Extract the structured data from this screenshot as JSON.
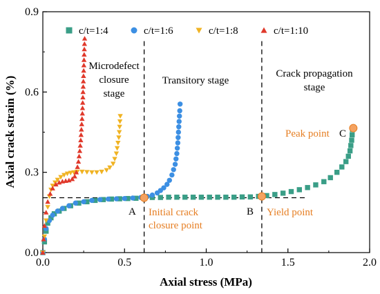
{
  "chart_data": {
    "type": "scatter",
    "xlabel": "Axial stress (MPa)",
    "ylabel": "Axial crack strain (%)",
    "xlim": [
      0,
      2.0
    ],
    "ylim": [
      0,
      0.9
    ],
    "xticks": [
      "0.0",
      "0.5",
      "1.0",
      "1.5",
      "2.0"
    ],
    "yticks": [
      "0.0",
      "0.3",
      "0.6",
      "0.9"
    ],
    "grid": false,
    "legend_position": "top",
    "series": [
      {
        "name": "c/t=1:4",
        "marker": "square",
        "color": "#3A9E87",
        "points": [
          [
            0.0,
            0.0
          ],
          [
            0.01,
            0.04
          ],
          [
            0.02,
            0.08
          ],
          [
            0.03,
            0.11
          ],
          [
            0.05,
            0.13
          ],
          [
            0.07,
            0.145
          ],
          [
            0.1,
            0.155
          ],
          [
            0.13,
            0.165
          ],
          [
            0.17,
            0.175
          ],
          [
            0.22,
            0.185
          ],
          [
            0.27,
            0.19
          ],
          [
            0.32,
            0.195
          ],
          [
            0.37,
            0.198
          ],
          [
            0.42,
            0.2
          ],
          [
            0.47,
            0.201
          ],
          [
            0.52,
            0.202
          ],
          [
            0.57,
            0.203
          ],
          [
            0.62,
            0.205
          ],
          [
            0.67,
            0.206
          ],
          [
            0.72,
            0.206
          ],
          [
            0.77,
            0.207
          ],
          [
            0.82,
            0.207
          ],
          [
            0.87,
            0.207
          ],
          [
            0.92,
            0.207
          ],
          [
            0.97,
            0.207
          ],
          [
            1.02,
            0.207
          ],
          [
            1.07,
            0.207
          ],
          [
            1.12,
            0.207
          ],
          [
            1.17,
            0.207
          ],
          [
            1.22,
            0.208
          ],
          [
            1.27,
            0.208
          ],
          [
            1.32,
            0.21
          ],
          [
            1.37,
            0.213
          ],
          [
            1.42,
            0.217
          ],
          [
            1.47,
            0.222
          ],
          [
            1.52,
            0.228
          ],
          [
            1.57,
            0.235
          ],
          [
            1.62,
            0.243
          ],
          [
            1.67,
            0.253
          ],
          [
            1.72,
            0.265
          ],
          [
            1.76,
            0.28
          ],
          [
            1.8,
            0.3
          ],
          [
            1.83,
            0.32
          ],
          [
            1.855,
            0.34
          ],
          [
            1.87,
            0.36
          ],
          [
            1.88,
            0.38
          ],
          [
            1.885,
            0.4
          ],
          [
            1.89,
            0.42
          ],
          [
            1.893,
            0.44
          ],
          [
            1.895,
            0.46
          ]
        ]
      },
      {
        "name": "c/t=1:6",
        "marker": "circle",
        "color": "#3C8FE3",
        "points": [
          [
            0.0,
            0.0
          ],
          [
            0.01,
            0.05
          ],
          [
            0.02,
            0.09
          ],
          [
            0.04,
            0.12
          ],
          [
            0.06,
            0.14
          ],
          [
            0.09,
            0.155
          ],
          [
            0.12,
            0.165
          ],
          [
            0.16,
            0.175
          ],
          [
            0.2,
            0.185
          ],
          [
            0.25,
            0.19
          ],
          [
            0.3,
            0.195
          ],
          [
            0.35,
            0.198
          ],
          [
            0.4,
            0.2
          ],
          [
            0.45,
            0.201
          ],
          [
            0.5,
            0.202
          ],
          [
            0.55,
            0.204
          ],
          [
            0.6,
            0.206
          ],
          [
            0.64,
            0.21
          ],
          [
            0.67,
            0.215
          ],
          [
            0.7,
            0.223
          ],
          [
            0.72,
            0.232
          ],
          [
            0.74,
            0.242
          ],
          [
            0.76,
            0.255
          ],
          [
            0.775,
            0.27
          ],
          [
            0.79,
            0.29
          ],
          [
            0.8,
            0.31
          ],
          [
            0.81,
            0.33
          ],
          [
            0.815,
            0.35
          ],
          [
            0.82,
            0.37
          ],
          [
            0.823,
            0.39
          ],
          [
            0.826,
            0.41
          ],
          [
            0.828,
            0.43
          ],
          [
            0.83,
            0.45
          ],
          [
            0.832,
            0.47
          ],
          [
            0.834,
            0.49
          ],
          [
            0.836,
            0.51
          ],
          [
            0.838,
            0.53
          ],
          [
            0.84,
            0.555
          ]
        ]
      },
      {
        "name": "c/t=1:8",
        "marker": "triangle-down",
        "color": "#F0B323",
        "points": [
          [
            0.0,
            0.0
          ],
          [
            0.01,
            0.06
          ],
          [
            0.02,
            0.12
          ],
          [
            0.03,
            0.17
          ],
          [
            0.04,
            0.21
          ],
          [
            0.05,
            0.235
          ],
          [
            0.06,
            0.25
          ],
          [
            0.075,
            0.262
          ],
          [
            0.09,
            0.272
          ],
          [
            0.11,
            0.282
          ],
          [
            0.13,
            0.29
          ],
          [
            0.15,
            0.295
          ],
          [
            0.17,
            0.298
          ],
          [
            0.19,
            0.3
          ],
          [
            0.21,
            0.302
          ],
          [
            0.24,
            0.302
          ],
          [
            0.27,
            0.301
          ],
          [
            0.3,
            0.3
          ],
          [
            0.33,
            0.3
          ],
          [
            0.36,
            0.302
          ],
          [
            0.39,
            0.308
          ],
          [
            0.41,
            0.318
          ],
          [
            0.43,
            0.332
          ],
          [
            0.44,
            0.35
          ],
          [
            0.45,
            0.37
          ],
          [
            0.455,
            0.39
          ],
          [
            0.46,
            0.41
          ],
          [
            0.465,
            0.43
          ],
          [
            0.468,
            0.45
          ],
          [
            0.47,
            0.47
          ],
          [
            0.472,
            0.49
          ],
          [
            0.474,
            0.51
          ]
        ]
      },
      {
        "name": "c/t=1:10",
        "marker": "triangle-up",
        "color": "#E0392B",
        "points": [
          [
            0.0,
            0.0
          ],
          [
            0.005,
            0.05
          ],
          [
            0.01,
            0.1
          ],
          [
            0.02,
            0.15
          ],
          [
            0.03,
            0.19
          ],
          [
            0.045,
            0.22
          ],
          [
            0.06,
            0.24
          ],
          [
            0.08,
            0.255
          ],
          [
            0.1,
            0.262
          ],
          [
            0.12,
            0.266
          ],
          [
            0.14,
            0.268
          ],
          [
            0.16,
            0.27
          ],
          [
            0.18,
            0.275
          ],
          [
            0.195,
            0.285
          ],
          [
            0.205,
            0.3
          ],
          [
            0.212,
            0.32
          ],
          [
            0.218,
            0.34
          ],
          [
            0.222,
            0.36
          ],
          [
            0.226,
            0.38
          ],
          [
            0.229,
            0.4
          ],
          [
            0.232,
            0.42
          ],
          [
            0.234,
            0.44
          ],
          [
            0.236,
            0.46
          ],
          [
            0.238,
            0.48
          ],
          [
            0.24,
            0.5
          ],
          [
            0.242,
            0.52
          ],
          [
            0.243,
            0.54
          ],
          [
            0.244,
            0.56
          ],
          [
            0.245,
            0.58
          ],
          [
            0.246,
            0.6
          ],
          [
            0.247,
            0.62
          ],
          [
            0.248,
            0.64
          ],
          [
            0.249,
            0.66
          ],
          [
            0.25,
            0.68
          ],
          [
            0.251,
            0.7
          ],
          [
            0.252,
            0.72
          ],
          [
            0.253,
            0.74
          ],
          [
            0.254,
            0.76
          ],
          [
            0.255,
            0.78
          ],
          [
            0.256,
            0.8
          ]
        ]
      }
    ],
    "dividers_x": [
      0.62,
      1.34
    ],
    "horizontal_reference": {
      "y": 0.205,
      "x_from": 0.0,
      "x_to": 1.62
    },
    "key_points": [
      {
        "label": "Initial crack closure point",
        "letter": "A",
        "x": 0.62,
        "y": 0.205,
        "color": "#F4A261"
      },
      {
        "label": "Yield point",
        "letter": "B",
        "x": 1.34,
        "y": 0.21,
        "color": "#F4A261"
      },
      {
        "label": "Peak point",
        "letter": "C",
        "x": 1.9,
        "y": 0.465,
        "color": "#F4A261"
      }
    ],
    "stage_labels": {
      "microdefect": [
        "Microdefect",
        "closure",
        "stage"
      ],
      "transitory": "Transitory stage",
      "crack_propagation": [
        "Crack propagation",
        "stage"
      ]
    },
    "annotations": {
      "letter_a": "A",
      "letter_b": "B",
      "letter_c": "C",
      "initial_crack": [
        "Initial crack",
        "closure point"
      ],
      "yield_point": "Yield point",
      "peak_point": "Peak point"
    }
  }
}
